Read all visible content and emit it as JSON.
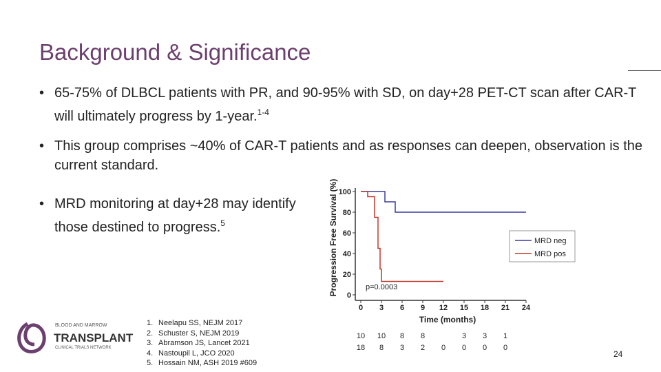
{
  "header": {
    "title": "Background & Significance"
  },
  "bullets": [
    {
      "text": "65-75% of DLBCL patients with PR, and 90-95% with SD, on day+28 PET-CT scan after CAR-T will ultimately progress by 1-year.",
      "sup": "1-4"
    },
    {
      "text": "This group comprises ~40% of CAR-T patients and as responses can deepen, observation is the current standard."
    },
    {
      "text": "MRD monitoring at day+28 may identify those destined to progress.",
      "sup": "5"
    }
  ],
  "figure": {
    "y_label": "Progression Free Survival (%)",
    "x_label": "Time (months)",
    "p_value": "p=0.0003",
    "xlim": [
      0,
      24
    ],
    "xticks": [
      0,
      3,
      6,
      9,
      12,
      15,
      18,
      21,
      24
    ],
    "ylim": [
      0,
      100
    ],
    "yticks": [
      0,
      20,
      40,
      60,
      80,
      100
    ],
    "series": [
      {
        "name": "MRD neg",
        "color": "#3b3b9e",
        "x": [
          0,
          3.5,
          3.5,
          5,
          5,
          24
        ],
        "y": [
          100,
          100,
          90,
          90,
          80,
          80
        ]
      },
      {
        "name": "MRD pos",
        "color": "#c0392b",
        "x": [
          0,
          1,
          1,
          2,
          2,
          2.5,
          2.5,
          2.8,
          2.8,
          3,
          3,
          12
        ],
        "y": [
          100,
          100,
          95,
          95,
          75,
          75,
          45,
          45,
          25,
          25,
          13,
          13
        ]
      }
    ],
    "risk_table": [
      [
        10,
        10,
        8,
        8,
        null,
        3,
        3,
        1
      ],
      [
        18,
        8,
        3,
        2,
        0,
        0,
        0,
        0
      ]
    ]
  },
  "logo": {
    "line1": "BLOOD AND MARROW",
    "line2": "TRANSPLANT",
    "line3": "CLINICAL TRIALS NETWORK"
  },
  "references": [
    {
      "num": "1.",
      "text": "Neelapu SS, NEJM 2017"
    },
    {
      "num": "2.",
      "text": "Schuster S, NEJM 2019"
    },
    {
      "num": "3.",
      "text": "Abramson JS, Lancet 2021"
    },
    {
      "num": "4.",
      "text": "Nastoupil L, JCO 2020"
    },
    {
      "num": "5.",
      "text": "Hossain NM, ASH 2019 #609"
    }
  ],
  "page_number": "24"
}
